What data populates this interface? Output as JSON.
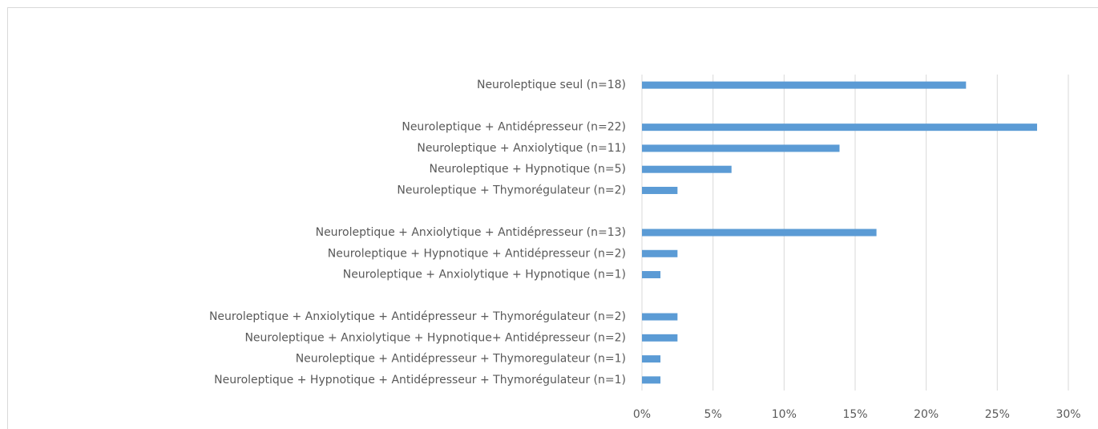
{
  "chart_data": {
    "type": "bar",
    "orientation": "horizontal",
    "categories": [
      "Neuroleptique seul (n=18)",
      null,
      "Neuroleptique + Antidépresseur (n=22)",
      "Neuroleptique + Anxiolytique (n=11)",
      "Neuroleptique + Hypnotique (n=5)",
      "Neuroleptique + Thymorégulateur (n=2)",
      null,
      "Neuroleptique + Anxiolytique + Antidépresseur (n=13)",
      "Neuroleptique + Hypnotique + Antidépresseur (n=2)",
      "Neuroleptique + Anxiolytique + Hypnotique (n=1)",
      null,
      "Neuroleptique + Anxiolytique + Antidépresseur + Thymorégulateur (n=2)",
      "Neuroleptique + Anxiolytique + Hypnotique+ Antidépresseur (n=2)",
      "Neuroleptique + Antidépresseur + Thymoregulateur (n=1)",
      "Neuroleptique + Hypnotique + Antidépresseur + Thymorégulateur (n=1)"
    ],
    "values": [
      22.8,
      null,
      27.8,
      13.9,
      6.3,
      2.5,
      null,
      16.5,
      2.5,
      1.3,
      null,
      2.5,
      2.5,
      1.3,
      1.3
    ],
    "color": "#5b9bd5",
    "xlim": [
      0,
      30
    ],
    "xticks": [
      {
        "value": 0,
        "label": "0%"
      },
      {
        "value": 5,
        "label": "5%"
      },
      {
        "value": 10,
        "label": "10%"
      },
      {
        "value": 15,
        "label": "15%"
      },
      {
        "value": 20,
        "label": "20%"
      },
      {
        "value": 25,
        "label": "25%"
      },
      {
        "value": 30,
        "label": "30%"
      }
    ],
    "grid": true
  }
}
